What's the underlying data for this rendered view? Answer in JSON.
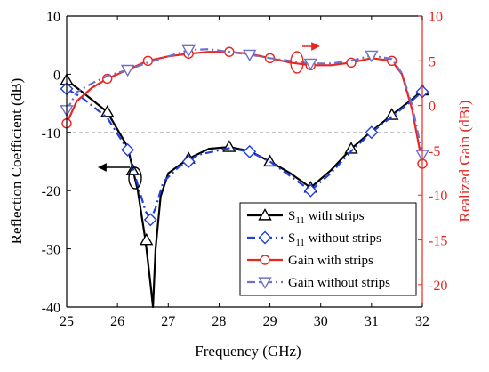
{
  "chart_data": {
    "type": "line",
    "xlabel": "Frequency (GHz)",
    "ylabel_left": "Reflection Coefficient (dB)",
    "ylabel_right": "Realized Gain (dBi)",
    "xlim": [
      25,
      32
    ],
    "ylim_left": [
      -40,
      10
    ],
    "ylim_right": [
      -22.5,
      10
    ],
    "x_ticks": [
      25,
      26,
      27,
      28,
      29,
      30,
      31,
      32
    ],
    "y_left_ticks": [
      -40,
      -30,
      -20,
      -10,
      0,
      10
    ],
    "y_right_ticks": [
      -20,
      -15,
      -10,
      -5,
      0,
      5,
      10
    ],
    "reference_line": {
      "axis": "left",
      "y": -10
    },
    "legend_position": "lower-right",
    "colors": {
      "left_axis": "#000000",
      "right_axis": "#e8251f"
    },
    "series": [
      {
        "name": "S11 with strips",
        "legend_main": "S",
        "legend_sub": "11",
        "legend_rest": " with strips",
        "axis": "left",
        "color": "#000000",
        "line": "solid",
        "marker": "triangle-up",
        "x": [
          25.0,
          25.3,
          25.8,
          26.2,
          26.4,
          26.55,
          26.65,
          26.7,
          26.75,
          26.85,
          27.0,
          27.4,
          27.8,
          28.2,
          28.6,
          29.0,
          29.4,
          29.8,
          30.2,
          30.6,
          31.0,
          31.4,
          31.8,
          32.0
        ],
        "y": [
          -1.0,
          -3.0,
          -6.5,
          -12.5,
          -20.0,
          -28.5,
          -36.0,
          -40.0,
          -30.0,
          -21.0,
          -17.0,
          -14.5,
          -12.8,
          -12.5,
          -13.2,
          -15.0,
          -17.0,
          -19.5,
          -16.5,
          -12.8,
          -9.8,
          -7.0,
          -4.3,
          -2.8
        ],
        "marker_x": [
          25.0,
          25.8,
          26.3,
          26.57,
          27.4,
          28.2,
          29.0,
          29.8,
          30.6,
          31.4,
          32.0
        ],
        "marker_y": [
          -1.0,
          -6.5,
          -16.5,
          -28.5,
          -14.5,
          -12.5,
          -15.0,
          -19.5,
          -12.8,
          -7.0,
          -2.8
        ]
      },
      {
        "name": "S11 without strips",
        "legend_main": "S",
        "legend_sub": "11",
        "legend_rest": " without strips",
        "axis": "left",
        "color": "#1f3fe0",
        "line": "dashdot",
        "marker": "diamond",
        "x": [
          25.0,
          25.3,
          25.8,
          26.2,
          26.4,
          26.55,
          26.65,
          26.75,
          26.9,
          27.2,
          27.6,
          28.2,
          28.6,
          29.0,
          29.4,
          29.8,
          30.2,
          30.6,
          31.0,
          31.4,
          31.8,
          32.0
        ],
        "y": [
          -2.5,
          -4.0,
          -7.5,
          -13.0,
          -19.0,
          -23.5,
          -25.0,
          -23.0,
          -18.5,
          -16.0,
          -13.8,
          -12.7,
          -13.3,
          -15.0,
          -17.5,
          -20.0,
          -17.0,
          -13.2,
          -10.0,
          -7.3,
          -4.5,
          -3.0
        ],
        "marker_x": [
          25.0,
          26.2,
          26.65,
          27.4,
          28.6,
          29.8,
          31.0,
          32.0
        ],
        "marker_y": [
          -2.5,
          -13.0,
          -25.0,
          -15.0,
          -13.3,
          -20.0,
          -10.0,
          -3.0
        ]
      },
      {
        "name": "Gain with strips",
        "legend_main": "Gain with strips",
        "legend_sub": "",
        "legend_rest": "",
        "axis": "right",
        "color": "#e8251f",
        "line": "solid",
        "marker": "circle",
        "x": [
          25.0,
          25.2,
          25.5,
          25.8,
          26.2,
          26.6,
          27.0,
          27.4,
          27.8,
          28.2,
          28.6,
          29.0,
          29.4,
          29.8,
          30.2,
          30.6,
          31.0,
          31.4,
          31.6,
          31.8,
          32.0
        ],
        "y": [
          -2.0,
          0.5,
          2.0,
          3.0,
          4.0,
          5.0,
          5.5,
          5.8,
          6.0,
          6.0,
          5.8,
          5.3,
          4.8,
          4.5,
          4.5,
          4.8,
          5.3,
          5.0,
          3.5,
          -0.5,
          -6.5
        ],
        "marker_x": [
          25.0,
          25.8,
          26.6,
          27.4,
          28.2,
          29.0,
          29.8,
          30.6,
          31.4,
          32.0
        ],
        "marker_y": [
          -2.0,
          3.0,
          5.0,
          5.8,
          6.0,
          5.3,
          4.5,
          4.8,
          5.0,
          -6.5
        ]
      },
      {
        "name": "Gain without strips",
        "legend_main": "Gain without strips",
        "legend_sub": "",
        "legend_rest": "",
        "axis": "right",
        "color": "#7070c8",
        "line": "dashdot",
        "marker": "triangle-down",
        "x": [
          25.0,
          25.2,
          25.5,
          25.8,
          26.2,
          26.6,
          27.0,
          27.4,
          27.8,
          28.2,
          28.6,
          29.0,
          29.4,
          29.8,
          30.2,
          30.6,
          31.0,
          31.4,
          31.6,
          31.8,
          32.0
        ],
        "y": [
          -0.5,
          1.5,
          2.5,
          3.3,
          4.0,
          4.8,
          5.5,
          6.2,
          6.3,
          6.0,
          5.7,
          5.3,
          5.0,
          4.7,
          4.7,
          5.0,
          5.6,
          5.2,
          3.6,
          0.0,
          -5.5
        ],
        "marker_x": [
          25.0,
          26.2,
          27.4,
          28.6,
          29.8,
          31.0,
          32.0
        ],
        "marker_y": [
          -0.5,
          4.0,
          6.2,
          5.7,
          4.7,
          5.6,
          -5.5
        ]
      }
    ]
  }
}
